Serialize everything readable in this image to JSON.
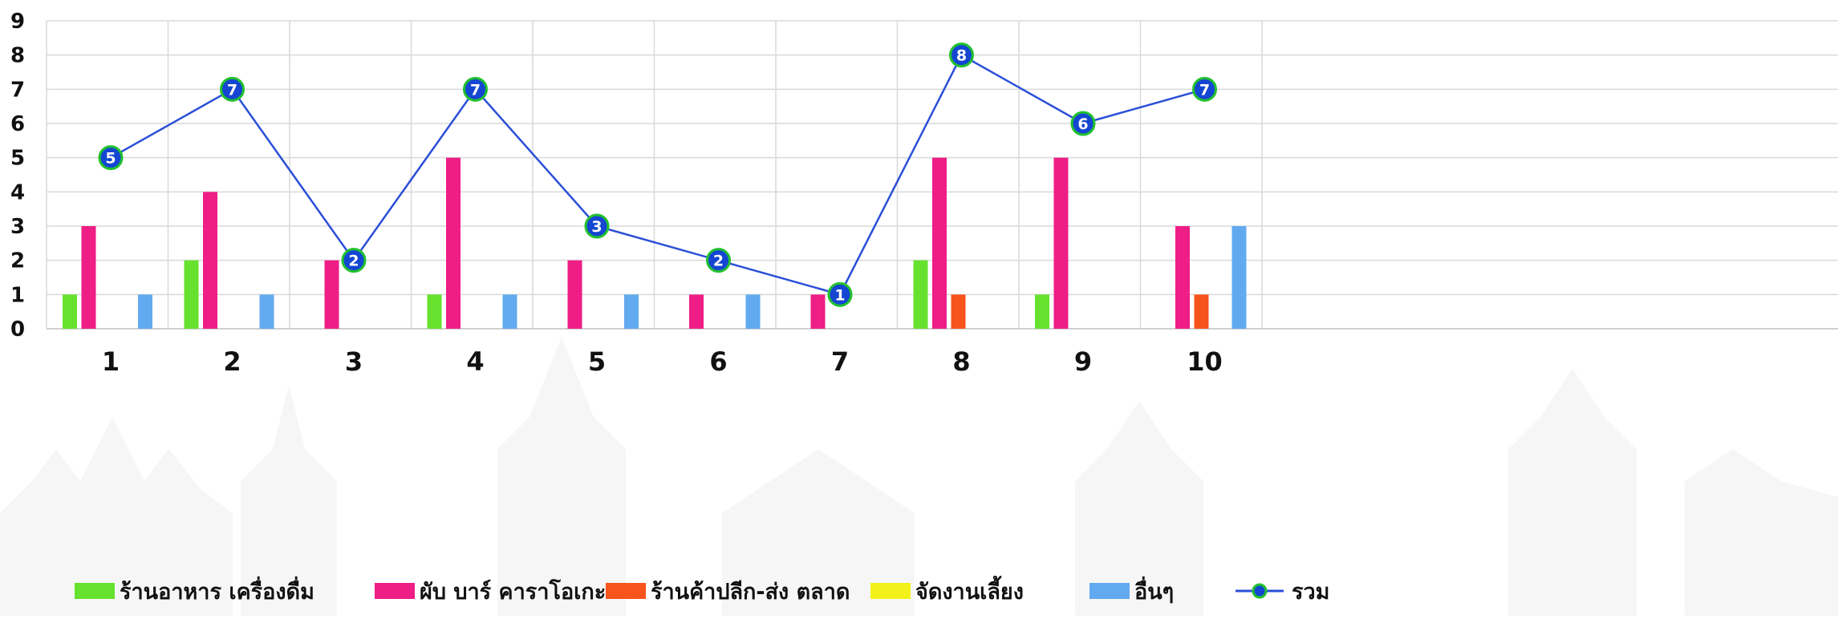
{
  "chart_data": {
    "type": "bar",
    "categories": [
      "1",
      "2",
      "3",
      "4",
      "5",
      "6",
      "7",
      "8",
      "9",
      "10"
    ],
    "y_ticks": [
      "0",
      "1",
      "2",
      "3",
      "4",
      "5",
      "6",
      "7",
      "8",
      "9"
    ],
    "ylim": [
      0,
      9
    ],
    "grid": true,
    "legend_position": "bottom",
    "series": [
      {
        "name": "ร้านอาหาร เครื่องดื่ม",
        "kind": "bar",
        "color": "#66e22e",
        "values": [
          1,
          2,
          0,
          1,
          0,
          0,
          0,
          2,
          1,
          0
        ]
      },
      {
        "name": "ผับ บาร์ คาราโอเกะ",
        "kind": "bar",
        "color": "#ee1e86",
        "values": [
          3,
          4,
          2,
          5,
          2,
          1,
          1,
          5,
          5,
          3
        ]
      },
      {
        "name": "ร้านค้าปลีก-ส่ง ตลาด",
        "kind": "bar",
        "color": "#f6541c",
        "values": [
          0,
          0,
          0,
          0,
          0,
          0,
          0,
          1,
          0,
          1
        ]
      },
      {
        "name": "จัดงานเลี้ยง",
        "kind": "bar",
        "color": "#f2f21a",
        "values": [
          0,
          0,
          0,
          0,
          0,
          0,
          0,
          0,
          0,
          0
        ]
      },
      {
        "name": "อื่นๆ",
        "kind": "bar",
        "color": "#62aaf0",
        "values": [
          1,
          1,
          0,
          1,
          1,
          1,
          0,
          0,
          0,
          3
        ]
      },
      {
        "name": "รวม",
        "kind": "line",
        "color": "#2b4fd8",
        "marker_color": "#1446d2",
        "marker_edge": "#22c12e",
        "values": [
          5,
          7,
          2,
          7,
          3,
          2,
          1,
          8,
          6,
          7
        ]
      }
    ]
  }
}
